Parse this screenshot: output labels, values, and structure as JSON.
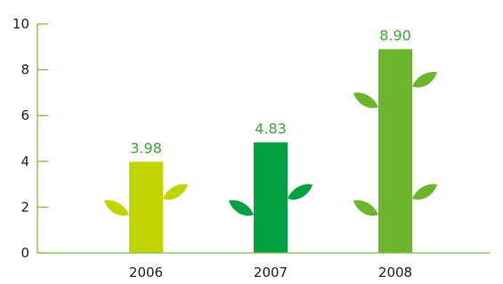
{
  "chart_data": {
    "type": "bar",
    "title": "",
    "xlabel": "",
    "ylabel": "",
    "categories": [
      "2006",
      "2007",
      "2008"
    ],
    "values": [
      3.98,
      4.83,
      8.9
    ],
    "value_labels": [
      "3.98",
      "4.83",
      "8.90"
    ],
    "ylim": [
      0,
      10
    ],
    "yticks": [
      "0",
      "2",
      "4",
      "6",
      "8",
      "10"
    ],
    "grid": false,
    "legend": "none",
    "colors": {
      "bars": [
        "#c2d400",
        "#00a13e",
        "#6cb52d"
      ],
      "axis": "#7cc242",
      "value_label": "#3aaa35"
    },
    "decoration": "leaf-icon"
  }
}
